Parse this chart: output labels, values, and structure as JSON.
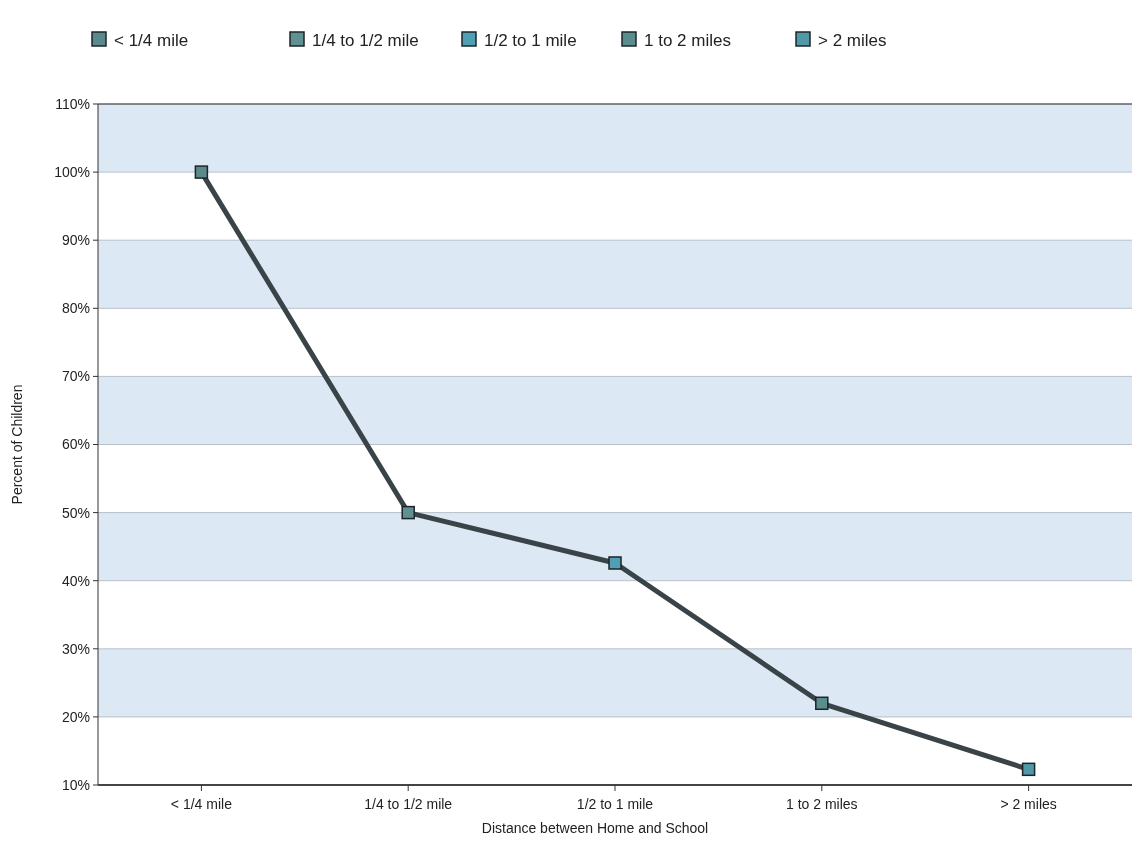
{
  "chart_data": {
    "type": "line",
    "xlabel": "Distance between Home and School",
    "ylabel": "Percent of Children",
    "categories": [
      "< 1/4 mile",
      "1/4 to 1/2 mile",
      "1/2 to 1 mile",
      "1 to 2 miles",
      "> 2 miles"
    ],
    "series": [
      {
        "color": "#3a4448",
        "values": [
          100,
          50,
          42.6,
          22,
          12.3
        ],
        "colors": [
          "#5a8a8c",
          "#5f9092",
          "#4fa0b4",
          "#5a8e8e",
          "#4f9aa6"
        ]
      }
    ],
    "ylim": [
      10,
      110
    ],
    "yticks": [
      {
        "value": 10,
        "label": "10%"
      },
      {
        "value": 20,
        "label": "20%"
      },
      {
        "value": 30,
        "label": "30%"
      },
      {
        "value": 40,
        "label": "40%"
      },
      {
        "value": 50,
        "label": "50%"
      },
      {
        "value": 60,
        "label": "60%"
      },
      {
        "value": 70,
        "label": "70%"
      },
      {
        "value": 80,
        "label": "80%"
      },
      {
        "value": 90,
        "label": "90%"
      },
      {
        "value": 100,
        "label": "100%"
      },
      {
        "value": 110,
        "label": "110%"
      }
    ],
    "grid": "y",
    "marker": "square",
    "line_style": "solid"
  }
}
